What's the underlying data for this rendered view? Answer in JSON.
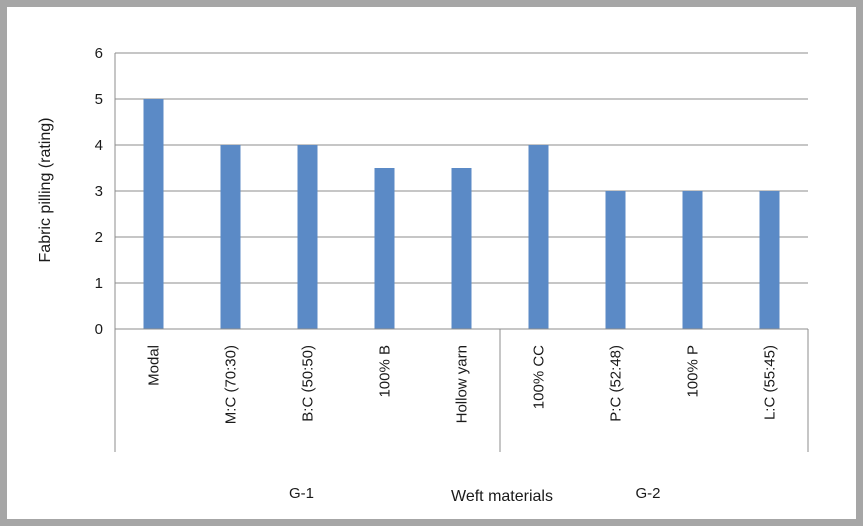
{
  "chart_data": {
    "type": "bar",
    "title": "",
    "xlabel": "Weft materials",
    "ylabel": "Fabric pilling (rating)",
    "ylim": [
      0,
      6
    ],
    "yticks": [
      "0",
      "1",
      "2",
      "3",
      "4",
      "5",
      "6"
    ],
    "categories": [
      "Modal",
      "M:C (70:30)",
      "B:C (50:50)",
      "100% B",
      "Hollow yarn",
      "100% CC",
      "P:C (52:48)",
      "100% P",
      "L:C (55:45)"
    ],
    "values": [
      5,
      4,
      4,
      3.5,
      3.5,
      4,
      3,
      3,
      3
    ],
    "bar_color": "#5b8ac6",
    "grid": true,
    "groups": [
      {
        "label": "G-1",
        "start": 0,
        "end": 4
      },
      {
        "label": "G-2",
        "start": 5,
        "end": 8
      }
    ]
  }
}
